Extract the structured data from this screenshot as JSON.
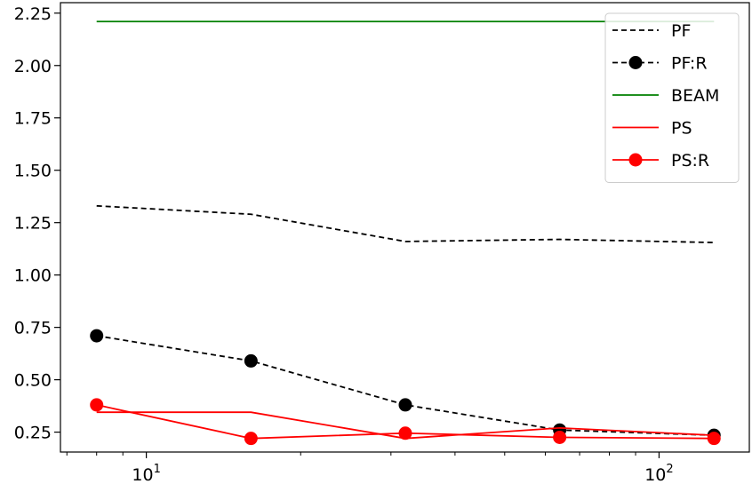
{
  "chart_data": {
    "type": "line",
    "x_scale": "log",
    "xlim": [
      6.8,
      150
    ],
    "ylim": [
      0.155,
      2.3
    ],
    "grid": false,
    "legend_position": "top-right",
    "x_ticks": [
      {
        "value": 10,
        "base": "10",
        "exp": "1"
      },
      {
        "value": 100,
        "base": "10",
        "exp": "2"
      }
    ],
    "y_ticks": [
      {
        "value": 0.25,
        "label": "0.25"
      },
      {
        "value": 0.5,
        "label": "0.50"
      },
      {
        "value": 0.75,
        "label": "0.75"
      },
      {
        "value": 1.0,
        "label": "1.00"
      },
      {
        "value": 1.25,
        "label": "1.25"
      },
      {
        "value": 1.5,
        "label": "1.50"
      },
      {
        "value": 1.75,
        "label": "1.75"
      },
      {
        "value": 2.0,
        "label": "2.00"
      },
      {
        "value": 2.25,
        "label": "2.25"
      }
    ],
    "series": [
      {
        "name": "PF",
        "color": "#000000",
        "dash": "dashed",
        "marker": false,
        "x": [
          8,
          16,
          32,
          64,
          128
        ],
        "y": [
          1.33,
          1.29,
          1.16,
          1.17,
          1.155
        ]
      },
      {
        "name": "PF:R",
        "color": "#000000",
        "dash": "dashed",
        "marker": true,
        "x": [
          8,
          16,
          32,
          64,
          128
        ],
        "y": [
          0.71,
          0.59,
          0.38,
          0.26,
          0.235
        ]
      },
      {
        "name": "BEAM",
        "color": "#008000",
        "dash": "solid",
        "marker": false,
        "x": [
          8,
          128
        ],
        "y": [
          2.21,
          2.21
        ]
      },
      {
        "name": "PS",
        "color": "#ff0000",
        "dash": "solid",
        "marker": false,
        "x": [
          8,
          16,
          32,
          64,
          128
        ],
        "y": [
          0.345,
          0.345,
          0.22,
          0.27,
          0.235
        ]
      },
      {
        "name": "PS:R",
        "color": "#ff0000",
        "dash": "solid",
        "marker": true,
        "x": [
          8,
          16,
          32,
          64,
          128
        ],
        "y": [
          0.38,
          0.22,
          0.245,
          0.225,
          0.22
        ]
      }
    ]
  }
}
